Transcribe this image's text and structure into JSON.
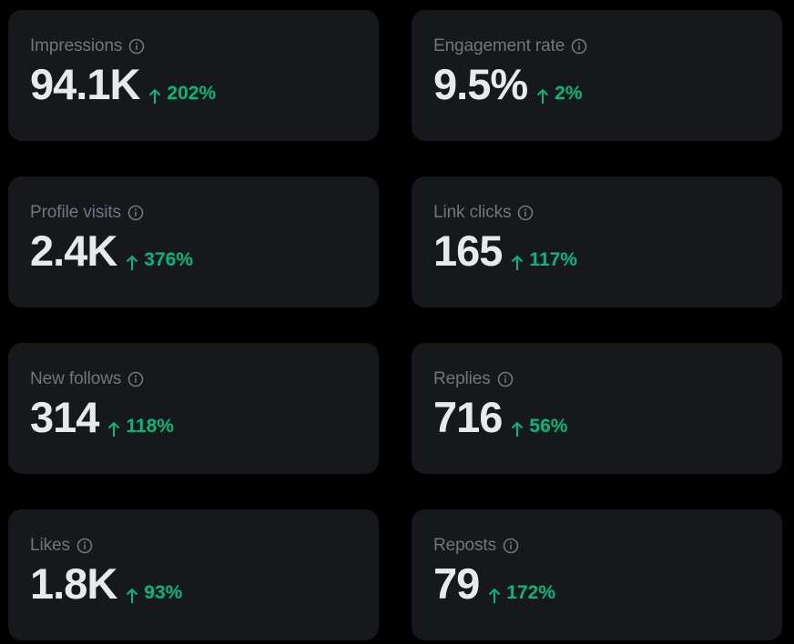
{
  "metrics": [
    {
      "label": "Impressions",
      "value": "94.1K",
      "change": "202%",
      "direction": "up"
    },
    {
      "label": "Engagement rate",
      "value": "9.5%",
      "change": "2%",
      "direction": "up"
    },
    {
      "label": "Profile visits",
      "value": "2.4K",
      "change": "376%",
      "direction": "up"
    },
    {
      "label": "Link clicks",
      "value": "165",
      "change": "117%",
      "direction": "up"
    },
    {
      "label": "New follows",
      "value": "314",
      "change": "118%",
      "direction": "up"
    },
    {
      "label": "Replies",
      "value": "716",
      "change": "56%",
      "direction": "up"
    },
    {
      "label": "Likes",
      "value": "1.8K",
      "change": "93%",
      "direction": "up"
    },
    {
      "label": "Reposts",
      "value": "79",
      "change": "172%",
      "direction": "up"
    }
  ],
  "icons": {
    "info": "info-circle-icon",
    "trend": "arrow-up-icon"
  },
  "colors": {
    "background": "#000000",
    "card": "#16181c",
    "label": "#71767b",
    "value": "#e7e9ea",
    "positive": "#00ba7c"
  }
}
